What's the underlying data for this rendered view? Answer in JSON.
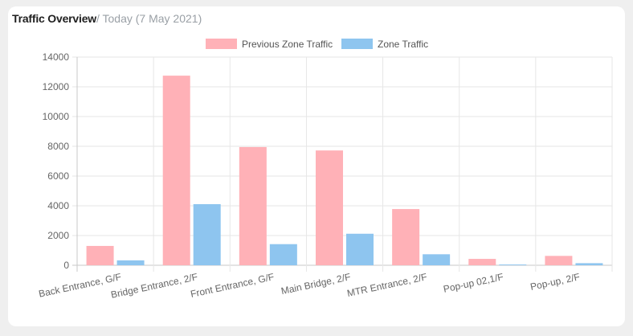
{
  "header": {
    "title": "Traffic Overview",
    "subtitle": "/ Today (7 May 2021)"
  },
  "chart_data": {
    "type": "bar",
    "title": "",
    "xlabel": "",
    "ylabel": "",
    "categories": [
      "Back Entrance, G/F",
      "Bridge Entrance, 2/F",
      "Front Entrance, G/F",
      "Main Bridge, 2/F",
      "MTR Entrance, 2/F",
      "Pop-up 02,1/F",
      "Pop-up, 2/F"
    ],
    "series": [
      {
        "name": "Previous Zone Traffic",
        "values": [
          1300,
          12750,
          7950,
          7720,
          3780,
          430,
          630
        ],
        "color": "#ffb1b7",
        "border": "#ff6384"
      },
      {
        "name": "Zone Traffic",
        "values": [
          330,
          4110,
          1420,
          2120,
          740,
          50,
          140
        ],
        "color": "#8ec5ef",
        "border": "#36a2eb"
      }
    ],
    "ylim": [
      0,
      14000
    ],
    "yticks": [
      0,
      2000,
      4000,
      6000,
      8000,
      10000,
      12000,
      14000
    ],
    "grid": true,
    "legend": "top-center"
  }
}
